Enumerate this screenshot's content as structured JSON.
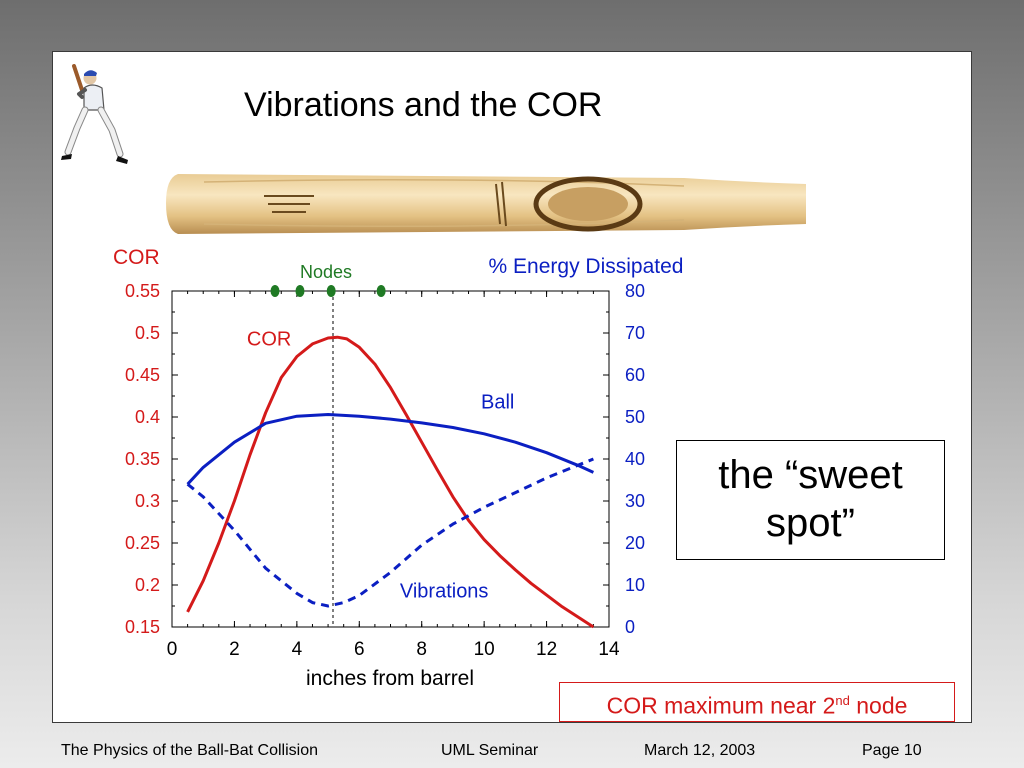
{
  "slide": {
    "title": "Vibrations and the COR",
    "sweet_spot_text": "the “sweet spot”",
    "callout": {
      "text": "COR maximum near 2",
      "superscript": "nd",
      "suffix": " node"
    }
  },
  "footer": {
    "left": "The Physics of the Ball-Bat Collision",
    "middle": "UML Seminar",
    "date": "March 12, 2003",
    "page": "Page 10"
  },
  "images": {
    "player": "baseball-batter-icon",
    "bat": "baseball-bat-image"
  },
  "colors": {
    "cor": "#d41a1a",
    "energy": "#0b1fc2",
    "nodes": "#1f7a24",
    "axis_text_left": "#d41a1a",
    "axis_text_right": "#0b1fc2"
  },
  "chart_data": {
    "type": "line",
    "xlabel": "inches from barrel",
    "ylabel_left": "COR",
    "ylabel_right": "% Energy Dissipated",
    "xlim": [
      0,
      14
    ],
    "ylim_left": [
      0.15,
      0.55
    ],
    "ylim_right": [
      0,
      80
    ],
    "x_ticks": [
      "0",
      "2",
      "4",
      "6",
      "8",
      "10",
      "12",
      "14"
    ],
    "y_left_ticks": [
      "0.55",
      "0.5",
      "0.45",
      "0.4",
      "0.35",
      "0.3",
      "0.25",
      "0.2",
      "0.15"
    ],
    "y_right_ticks": [
      "80",
      "70",
      "60",
      "50",
      "40",
      "30",
      "20",
      "10",
      "0"
    ],
    "nodes_label": "Nodes",
    "nodes_x": [
      3.3,
      4.1,
      5.1,
      6.7
    ],
    "marker_line_x": 5.2,
    "series": [
      {
        "name": "COR",
        "axis": "left",
        "style": "solid",
        "label_x": 2.4,
        "label_y": 0.485,
        "x": [
          0.5,
          1.0,
          1.5,
          2.0,
          2.5,
          3.0,
          3.5,
          4.0,
          4.5,
          5.0,
          5.3,
          5.6,
          6.0,
          6.5,
          7.0,
          7.5,
          8.0,
          8.5,
          9.0,
          9.5,
          10.0,
          10.5,
          11.0,
          11.5,
          12.0,
          12.5,
          13.0,
          13.5
        ],
        "y": [
          0.168,
          0.205,
          0.25,
          0.3,
          0.355,
          0.405,
          0.447,
          0.472,
          0.487,
          0.494,
          0.495,
          0.493,
          0.483,
          0.463,
          0.435,
          0.403,
          0.37,
          0.337,
          0.305,
          0.277,
          0.254,
          0.235,
          0.218,
          0.202,
          0.188,
          0.174,
          0.162,
          0.15
        ]
      },
      {
        "name": "Ball",
        "axis": "right",
        "style": "solid",
        "label_x": 9.9,
        "label_y": 52,
        "x": [
          0.5,
          1.0,
          2.0,
          3.0,
          4.0,
          5.0,
          6.0,
          7.0,
          8.0,
          9.0,
          10.0,
          11.0,
          12.0,
          13.0,
          13.5
        ],
        "y": [
          34,
          38,
          44,
          48.5,
          50.2,
          50.6,
          50.2,
          49.5,
          48.6,
          47.5,
          46,
          44,
          41.5,
          38.5,
          36.8
        ]
      },
      {
        "name": "Vibrations",
        "axis": "right",
        "style": "dashed",
        "label_x": 7.3,
        "label_y": 7,
        "x": [
          0.5,
          1.0,
          2.0,
          3.0,
          4.0,
          4.5,
          5.0,
          5.5,
          6.0,
          7.0,
          8.0,
          9.0,
          10.0,
          11.0,
          12.0,
          13.0,
          13.5
        ],
        "y": [
          34,
          31,
          23,
          14,
          8,
          5.8,
          5,
          5.8,
          7.5,
          13,
          19.5,
          24.5,
          28.5,
          32,
          35.5,
          38.5,
          40
        ]
      }
    ]
  }
}
